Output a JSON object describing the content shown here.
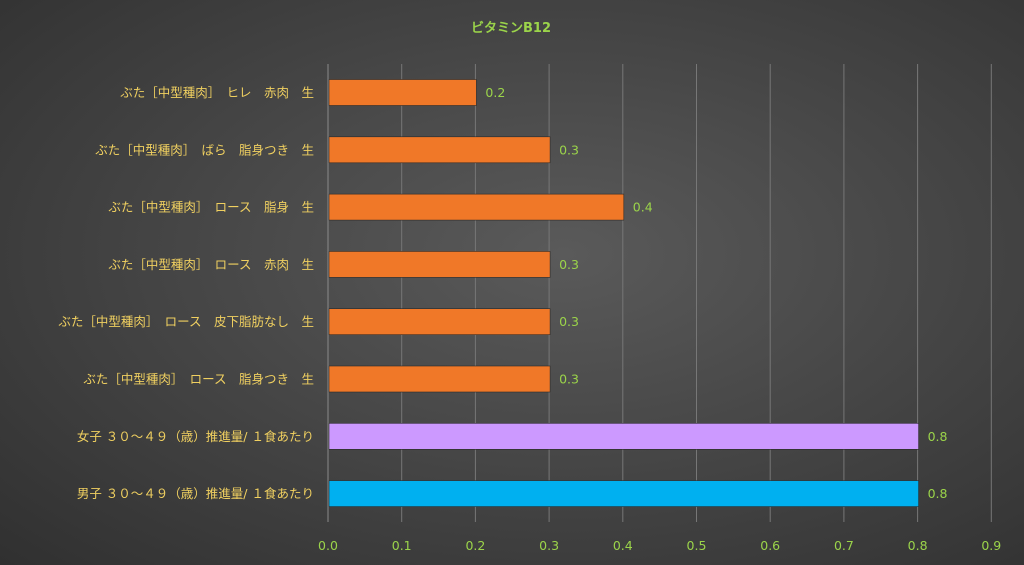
{
  "chart_data": {
    "type": "bar",
    "orientation": "horizontal",
    "title": "ビタミンB12",
    "xlabel": "",
    "ylabel": "",
    "xlim": [
      0,
      0.9
    ],
    "ticks": [
      "0.0",
      "0.1",
      "0.2",
      "0.3",
      "0.4",
      "0.5",
      "0.6",
      "0.7",
      "0.8",
      "0.9"
    ],
    "grid": true,
    "categories": [
      "ぶた［中型種肉］　ヒレ　赤肉　生",
      "ぶた［中型種肉］　ばら　脂身つき　生",
      "ぶた［中型種肉］　ロース　脂身　生",
      "ぶた［中型種肉］　ロース　赤肉　生",
      "ぶた［中型種肉］　ロース　皮下脂肪なし　生",
      "ぶた［中型種肉］　ロース　脂身つき　生",
      "女子 ３０～４９（歳）推進量/ １食あたり",
      "男子 ３０～４９（歳）推進量/ １食あたり"
    ],
    "values": [
      0.2,
      0.3,
      0.4,
      0.3,
      0.3,
      0.3,
      0.8,
      0.8
    ],
    "data_labels": [
      "0.2",
      "0.3",
      "0.4",
      "0.3",
      "0.3",
      "0.3",
      "0.8",
      "0.8"
    ],
    "bar_colors": [
      "#f07828",
      "#f07828",
      "#f07828",
      "#f07828",
      "#f07828",
      "#f07828",
      "#cc99ff",
      "#00b0f0"
    ]
  }
}
